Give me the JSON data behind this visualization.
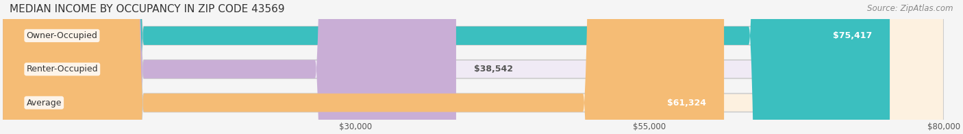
{
  "title": "MEDIAN INCOME BY OCCUPANCY IN ZIP CODE 43569",
  "source": "Source: ZipAtlas.com",
  "categories": [
    "Owner-Occupied",
    "Renter-Occupied",
    "Average"
  ],
  "values": [
    75417,
    38542,
    61324
  ],
  "labels": [
    "$75,417",
    "$38,542",
    "$61,324"
  ],
  "bar_colors": [
    "#3bbfbf",
    "#c9aed6",
    "#f5bc75"
  ],
  "bar_bg_colors": [
    "#e8f6f6",
    "#f0eaf5",
    "#fdf1e0"
  ],
  "xlim": [
    0,
    80000
  ],
  "xticks": [
    30000,
    55000,
    80000
  ],
  "xtick_labels": [
    "$30,000",
    "$55,000",
    "$80,000"
  ],
  "background_color": "#f5f5f5",
  "bar_height": 0.55,
  "label_fontsize": 9,
  "title_fontsize": 11,
  "source_fontsize": 8.5
}
